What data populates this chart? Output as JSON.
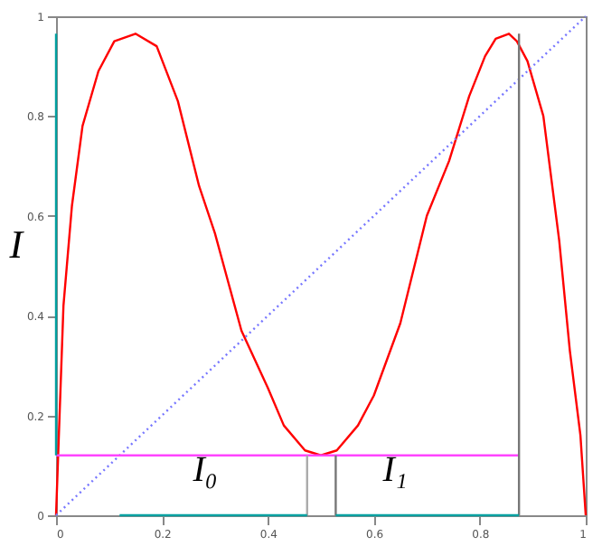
{
  "chart_data": {
    "type": "line",
    "ylabel": "I",
    "xlim": [
      0,
      1
    ],
    "ylim": [
      0,
      1
    ],
    "xticks": [
      0,
      0.2,
      0.4,
      0.6,
      0.8,
      1
    ],
    "yticks": [
      0,
      0.2,
      0.4,
      0.6,
      0.8,
      1
    ],
    "grid": false,
    "marker": "none",
    "series": [
      {
        "color": "#ff0000",
        "x": [
          0,
          0.014,
          0.03,
          0.05,
          0.08,
          0.11,
          0.15,
          0.19,
          0.23,
          0.27,
          0.3,
          0.35,
          0.4,
          0.43,
          0.47,
          0.5,
          0.53,
          0.57,
          0.6,
          0.65,
          0.7,
          0.742,
          0.78,
          0.81,
          0.83,
          0.855,
          0.87,
          0.89,
          0.92,
          0.95,
          0.97,
          0.99,
          1
        ],
        "values": [
          0,
          0.42,
          0.62,
          0.78,
          0.89,
          0.95,
          0.965,
          0.94,
          0.83,
          0.66,
          0.565,
          0.37,
          0.255,
          0.18,
          0.13,
          0.12,
          0.13,
          0.18,
          0.24,
          0.385,
          0.6,
          0.71,
          0.84,
          0.92,
          0.955,
          0.965,
          0.95,
          0.91,
          0.8,
          0.55,
          0.33,
          0.16,
          0
        ]
      },
      {
        "color": "#7777ff",
        "line_style": "dotted",
        "x": [
          0,
          1
        ],
        "values": [
          0,
          1
        ]
      },
      {
        "color": "#ff44ff",
        "x": [
          0,
          0.874
        ],
        "values": [
          0.12,
          0.12
        ]
      },
      {
        "color": "#aaaaaa",
        "x": [
          0.474,
          0.474
        ],
        "values": [
          0,
          0.12
        ]
      },
      {
        "color": "#777777",
        "x": [
          0.528,
          0.528
        ],
        "values": [
          0,
          0.12
        ]
      },
      {
        "color": "#777777",
        "x": [
          0.874,
          0.874
        ],
        "values": [
          0,
          0.965
        ]
      },
      {
        "color": "#00a0a0",
        "x": [
          0,
          0
        ],
        "values": [
          0.12,
          0.965
        ]
      },
      {
        "color": "#00a0a0",
        "x": [
          0.12,
          0.474
        ],
        "values": [
          0,
          0
        ]
      },
      {
        "color": "#00a0a0",
        "x": [
          0.528,
          0.874
        ],
        "values": [
          0,
          0
        ]
      }
    ],
    "annotations": [
      "I₀",
      "I₁"
    ]
  }
}
